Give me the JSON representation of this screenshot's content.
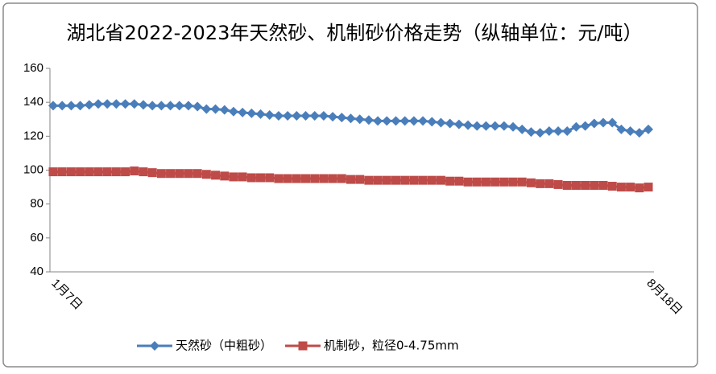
{
  "chart_data": {
    "type": "line",
    "title": "湖北省2022-2023年天然砂、机制砂价格走势（纵轴单位：元/吨）",
    "categories": [
      "1月7日",
      null,
      null,
      null,
      null,
      null,
      null,
      null,
      null,
      null,
      null,
      null,
      null,
      null,
      null,
      null,
      null,
      null,
      null,
      null,
      null,
      null,
      null,
      null,
      null,
      null,
      null,
      null,
      null,
      null,
      null,
      null,
      null,
      null,
      null,
      null,
      null,
      null,
      null,
      null,
      null,
      null,
      null,
      null,
      null,
      null,
      null,
      null,
      null,
      null,
      null,
      null,
      null,
      null,
      null,
      null,
      null,
      null,
      null,
      null,
      null,
      null,
      null,
      null,
      null,
      null,
      "8月18日"
    ],
    "series": [
      {
        "name": "天然砂（中粗砂）",
        "color": "#4a7ebb",
        "marker": "diamond",
        "values": [
          138,
          138,
          138,
          138,
          138.5,
          139,
          139,
          139,
          139,
          139,
          138.5,
          138,
          138,
          138,
          138,
          138,
          137.5,
          136,
          136,
          135.5,
          134.5,
          134,
          133.5,
          133,
          132.5,
          132,
          132,
          132,
          132,
          132,
          132,
          131.5,
          131,
          130.5,
          130,
          129.5,
          129,
          129,
          129,
          129,
          129,
          129,
          128.5,
          128,
          127.5,
          127,
          126.5,
          126,
          126,
          126,
          126,
          125.5,
          124,
          122.5,
          122,
          123,
          123,
          123,
          125.5,
          126,
          127.5,
          128,
          128,
          124,
          123,
          122,
          124
        ]
      },
      {
        "name": "机制砂，粒径0-4.75mm",
        "color": "#be4b48",
        "marker": "square",
        "values": [
          99,
          99,
          99,
          99,
          99,
          99,
          99,
          99,
          99,
          99.5,
          99,
          98.5,
          98,
          98,
          98,
          98,
          98,
          97.5,
          97,
          96.5,
          96,
          96,
          95.5,
          95.5,
          95.5,
          95,
          95,
          95,
          95,
          95,
          95,
          95,
          95,
          94.5,
          94.5,
          94,
          94,
          94,
          94,
          94,
          94,
          94,
          94,
          94,
          93.5,
          93.5,
          93,
          93,
          93,
          93,
          93,
          93,
          93,
          92.5,
          92,
          92,
          91.5,
          91,
          91,
          91,
          91,
          91,
          90.5,
          90,
          90,
          89.5,
          90
        ]
      }
    ],
    "ylim": [
      40,
      160
    ],
    "yticks": [
      40,
      60,
      80,
      100,
      120,
      140,
      160
    ],
    "grid": false,
    "legend": "bottom"
  }
}
